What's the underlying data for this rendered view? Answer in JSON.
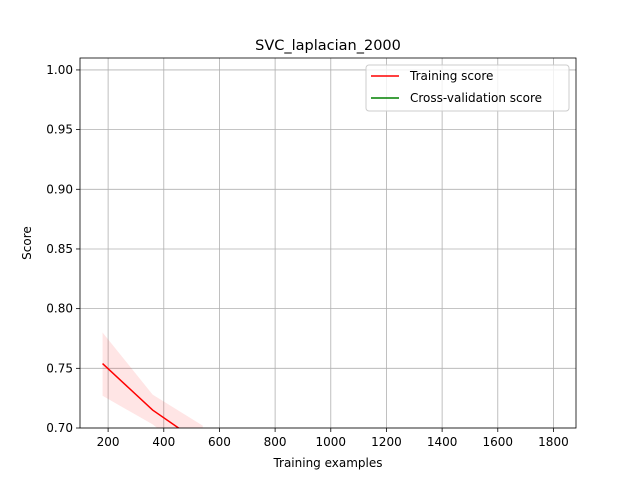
{
  "chart_data": {
    "type": "line",
    "title": "SVC_laplacian_2000",
    "x_label": "Training examples",
    "y_label": "Score",
    "x": [
      180,
      360,
      540
    ],
    "series": [
      {
        "name": "Training score",
        "color": "#ff0000",
        "values": [
          0.754,
          0.715,
          0.686
        ],
        "lower": [
          0.727,
          0.703,
          0.67
        ],
        "upper": [
          0.78,
          0.728,
          0.702
        ]
      },
      {
        "name": "Cross-validation score",
        "color": "#008000",
        "values": [
          null,
          null,
          null
        ]
      }
    ],
    "xlim": [
      99,
      1881
    ],
    "xticks": [
      200,
      400,
      600,
      800,
      1000,
      1200,
      1400,
      1600,
      1800
    ],
    "ylim": [
      0.7,
      1.01
    ],
    "yticks": [
      {
        "value": 0.7,
        "label": "0.70"
      },
      {
        "value": 0.75,
        "label": "0.75"
      },
      {
        "value": 0.8,
        "label": "0.80"
      },
      {
        "value": 0.85,
        "label": "0.85"
      },
      {
        "value": 0.9,
        "label": "0.90"
      },
      {
        "value": 0.95,
        "label": "0.95"
      },
      {
        "value": 1.0,
        "label": "1.00"
      }
    ],
    "grid": true,
    "legend": "upper right"
  }
}
